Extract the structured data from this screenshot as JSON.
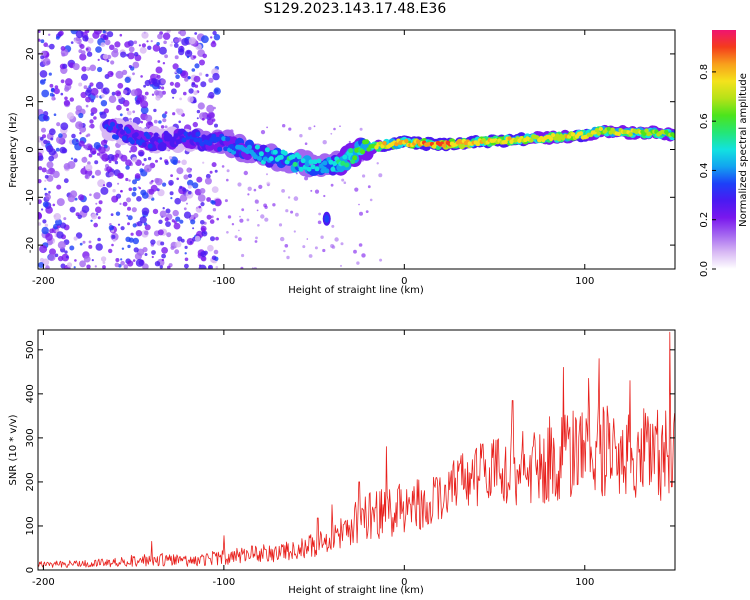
{
  "title": "S129.2023.143.17.48.E36",
  "colors": {
    "snr_line": "#e8201c",
    "colormap": [
      "#ffffff",
      "#d8b8f4",
      "#a466f0",
      "#7a18ee",
      "#4a1af2",
      "#1d40f8",
      "#12a4f0",
      "#12e2e0",
      "#24e676",
      "#4ce41c",
      "#b6e218",
      "#f4e21c",
      "#f8a01c",
      "#f43c1c",
      "#f01470"
    ]
  },
  "chart_data": [
    {
      "type": "heatmap",
      "title": "S129.2023.143.17.48.E36",
      "xlabel": "Height of straight line (km)",
      "ylabel": "Frequency (Hz)",
      "xlim": [
        -203,
        150
      ],
      "ylim": [
        -25,
        25
      ],
      "xticks": [
        -200,
        -100,
        0,
        100
      ],
      "yticks": [
        -20,
        -10,
        0,
        10,
        20
      ],
      "colorbar": {
        "label": "Normalized spectral amplitude",
        "range": [
          0,
          0.97
        ],
        "ticks": [
          "0.0",
          "0.2",
          "0.4",
          "0.6",
          "0.8"
        ]
      },
      "ridge": {
        "height_km": [
          -160,
          -140,
          -120,
          -100,
          -80,
          -60,
          -45,
          -35,
          -25,
          -10,
          0,
          20,
          40,
          60,
          80,
          100,
          110,
          125,
          140,
          150
        ],
        "frequency_hz": [
          4,
          2,
          2,
          1.5,
          -1,
          -2.5,
          -3.5,
          -3,
          0,
          1,
          1.5,
          1,
          1.5,
          2,
          2.5,
          3,
          4,
          3.5,
          3.5,
          3
        ],
        "peak_amplitude": [
          0.35,
          0.35,
          0.35,
          0.4,
          0.5,
          0.55,
          0.5,
          0.6,
          0.65,
          0.85,
          0.9,
          0.95,
          0.85,
          0.85,
          0.8,
          0.85,
          0.75,
          0.8,
          0.75,
          0.7
        ]
      },
      "blob": {
        "height_km": -43,
        "frequency_hz": -14.5,
        "amplitude": 0.35
      }
    },
    {
      "type": "line",
      "xlabel": "Height of straight line (km)",
      "ylabel": "SNR (10 * v/v)",
      "xlim": [
        -203,
        150
      ],
      "ylim": [
        0,
        545
      ],
      "xticks": [
        -200,
        -100,
        0,
        100
      ],
      "yticks": [
        0,
        100,
        200,
        300,
        400,
        500
      ],
      "series": [
        {
          "trend_x": [
            -203,
            -180,
            -160,
            -140,
            -120,
            -100,
            -80,
            -60,
            -40,
            -30,
            -20,
            -10,
            0,
            10,
            20,
            30,
            40,
            60,
            80,
            100,
            120,
            140,
            150
          ],
          "trend_y": [
            12,
            14,
            18,
            25,
            20,
            30,
            38,
            42,
            70,
            100,
            120,
            135,
            140,
            150,
            165,
            200,
            215,
            230,
            250,
            270,
            270,
            260,
            260
          ],
          "noise_amplitude": [
            6,
            6,
            9,
            12,
            10,
            14,
            16,
            18,
            25,
            35,
            45,
            50,
            45,
            45,
            45,
            50,
            55,
            65,
            75,
            80,
            80,
            80,
            80
          ],
          "peaks": [
            [
              -140,
              65
            ],
            [
              -100,
              78
            ],
            [
              -48,
              118
            ],
            [
              -40,
              148
            ],
            [
              -25,
              200
            ],
            [
              -10,
              280
            ],
            [
              7,
              205
            ],
            [
              18,
              210
            ],
            [
              60,
              385
            ],
            [
              88,
              460
            ],
            [
              102,
              435
            ],
            [
              108,
              480
            ],
            [
              125,
              430
            ],
            [
              147,
              540
            ]
          ]
        }
      ]
    }
  ]
}
